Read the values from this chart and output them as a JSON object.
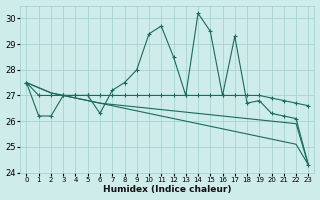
{
  "xlabel": "Humidex (Indice chaleur)",
  "bg_color": "#ceecea",
  "grid_color": "#9fcfcc",
  "line_color": "#1a6b5a",
  "ylim": [
    24,
    30.5
  ],
  "xlim": [
    -0.5,
    23.5
  ],
  "yticks": [
    24,
    25,
    26,
    27,
    28,
    29,
    30
  ],
  "xtick_labels": [
    "0",
    "1",
    "2",
    "3",
    "4",
    "5",
    "6",
    "7",
    "8",
    "9",
    "10",
    "11",
    "12",
    "13",
    "14",
    "15",
    "16",
    "17",
    "18",
    "19",
    "20",
    "21",
    "22",
    "23"
  ],
  "series_main": [
    27.5,
    26.2,
    26.2,
    27.0,
    27.0,
    27.0,
    26.3,
    27.2,
    27.5,
    28.0,
    29.4,
    29.7,
    28.5,
    27.0,
    30.2,
    29.5,
    27.0,
    29.3,
    26.7,
    26.8,
    26.3,
    26.2,
    26.1,
    24.3
  ],
  "series_flat": [
    27.5,
    27.0,
    27.0,
    27.0,
    27.0,
    27.0,
    27.0,
    27.0,
    27.0,
    27.0,
    27.0,
    27.0,
    27.0,
    27.0,
    27.0,
    27.0,
    27.0,
    27.0,
    27.0,
    27.0,
    26.9,
    26.8,
    26.7,
    26.6
  ],
  "series_diag1": [
    27.5,
    27.3,
    27.1,
    27.0,
    26.9,
    26.8,
    26.7,
    26.6,
    26.5,
    26.4,
    26.3,
    26.2,
    26.1,
    26.0,
    25.9,
    25.8,
    25.7,
    25.6,
    25.5,
    25.4,
    25.3,
    25.2,
    25.1,
    24.3
  ],
  "series_diag2": [
    27.5,
    27.3,
    27.1,
    27.0,
    26.9,
    26.8,
    26.7,
    26.65,
    26.6,
    26.55,
    26.5,
    26.45,
    26.4,
    26.35,
    26.3,
    26.25,
    26.2,
    26.15,
    26.1,
    26.05,
    26.0,
    25.95,
    25.9,
    24.3
  ]
}
